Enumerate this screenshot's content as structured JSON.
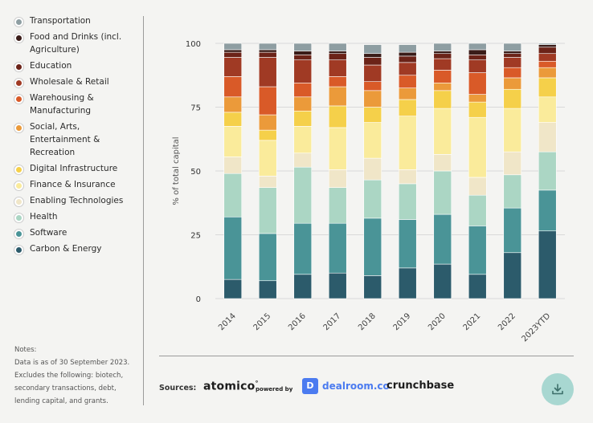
{
  "legend": {
    "items": [
      {
        "label": "Transportation",
        "color": "#8e9ea2"
      },
      {
        "label": "Food and Drinks (incl. Agriculture)",
        "color": "#3a1c18"
      },
      {
        "label": "Education",
        "color": "#6b2318"
      },
      {
        "label": "Wholesale & Retail",
        "color": "#a03a24"
      },
      {
        "label": "Warehousing & Manufacturing",
        "color": "#d95a28"
      },
      {
        "label": "Social, Arts, Entertainment & Recreation",
        "color": "#eb9a3a"
      },
      {
        "label": "Digital Infrastructure",
        "color": "#f5d04a"
      },
      {
        "label": "Finance & Insurance",
        "color": "#faeb9b"
      },
      {
        "label": "Enabling Technologies",
        "color": "#f0e6c8"
      },
      {
        "label": "Health",
        "color": "#abd6c4"
      },
      {
        "label": "Software",
        "color": "#4a9497"
      },
      {
        "label": "Carbon & Energy",
        "color": "#2c5b6b"
      }
    ]
  },
  "notes": {
    "text": "Notes:\nData is as of 30 September 2023. Excludes the following: biotech, secondary transactions, debt, lending capital, and grants."
  },
  "sources": {
    "label": "Sources:",
    "atomico": "atomico",
    "atomico_mark": "°",
    "powered_by": "powered by",
    "dealroom": "dealroom.co",
    "dealroom_icon": "D",
    "crunchbase": "crunchbase"
  },
  "icons": {
    "download": "download-icon"
  },
  "chart_data": {
    "type": "bar",
    "stacked": true,
    "ylabel": "% of total capital",
    "ylim": [
      0,
      100
    ],
    "yticks": [
      0,
      25,
      50,
      75,
      100
    ],
    "categories": [
      "2014",
      "2015",
      "2016",
      "2017",
      "2018",
      "2019",
      "2020",
      "2021",
      "2022",
      "2023YTD"
    ],
    "series": [
      {
        "name": "Carbon & Energy",
        "color": "#2c5b6b",
        "values": [
          7.5,
          7,
          9.5,
          10,
          9,
          12,
          13.5,
          9.5,
          18,
          26.5
        ]
      },
      {
        "name": "Software",
        "color": "#4a9497",
        "values": [
          24.5,
          18.5,
          20,
          19.5,
          22.5,
          19,
          19.5,
          19,
          17.5,
          16
        ]
      },
      {
        "name": "Health",
        "color": "#abd6c4",
        "values": [
          17,
          18,
          22,
          14,
          15,
          14,
          17,
          12,
          13,
          15
        ]
      },
      {
        "name": "Enabling Technologies",
        "color": "#f0e6c8",
        "values": [
          6.5,
          4.5,
          5.5,
          7,
          8.5,
          5.5,
          6.5,
          7,
          9,
          11.5
        ]
      },
      {
        "name": "Finance & Insurance",
        "color": "#faeb9b",
        "values": [
          12,
          14,
          10.5,
          16.5,
          14,
          21,
          18,
          23.5,
          17,
          10
        ]
      },
      {
        "name": "Digital Infrastructure",
        "color": "#f5d04a",
        "values": [
          5.5,
          4,
          6,
          8.5,
          6,
          6.5,
          7,
          6,
          7.5,
          7.5
        ]
      },
      {
        "name": "Social, Arts, Entertainment & Recreation",
        "color": "#eb9a3a",
        "values": [
          6,
          6,
          5.5,
          7.5,
          6.5,
          4.5,
          3,
          3,
          4.5,
          4
        ]
      },
      {
        "name": "Warehousing & Manufacturing",
        "color": "#d95a28",
        "values": [
          8,
          11,
          5.5,
          4,
          3.5,
          5,
          5,
          8.5,
          4,
          2.5
        ]
      },
      {
        "name": "Wholesale & Retail",
        "color": "#a03a24",
        "values": [
          7.5,
          11.5,
          9,
          6.5,
          6.5,
          5,
          4.5,
          5,
          4,
          3
        ]
      },
      {
        "name": "Education",
        "color": "#6b2318",
        "values": [
          2,
          2,
          2,
          2.5,
          3,
          2.5,
          2,
          2,
          1.5,
          2.5
        ]
      },
      {
        "name": "Food and Drinks (incl. Agriculture)",
        "color": "#3a1c18",
        "values": [
          1,
          1,
          1.5,
          1,
          1.5,
          1.5,
          1,
          2,
          1,
          1
        ]
      },
      {
        "name": "Transportation",
        "color": "#8e9ea2",
        "values": [
          2.5,
          2.5,
          3,
          3,
          3.5,
          3,
          3,
          2.5,
          3,
          0.5
        ]
      }
    ]
  }
}
